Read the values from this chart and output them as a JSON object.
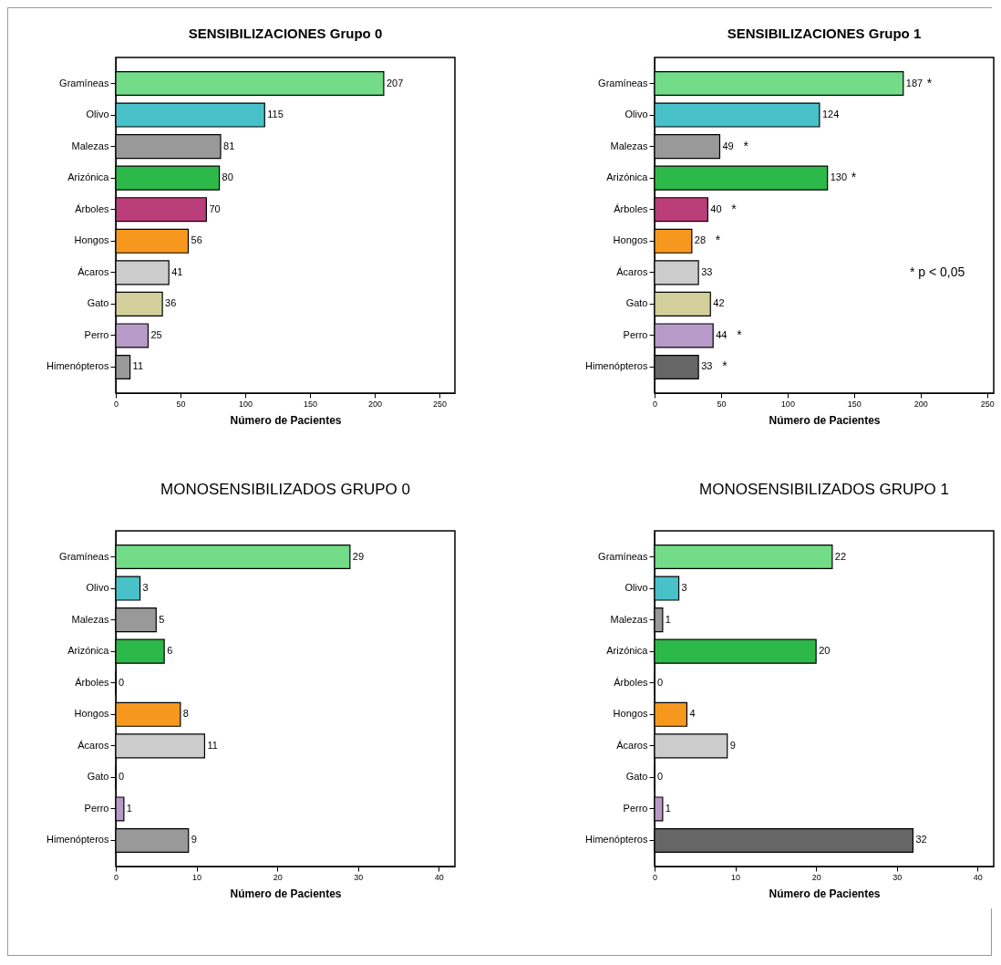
{
  "chart_data": [
    {
      "type": "bar",
      "orientation": "horizontal",
      "title": "SENSIBILIZACIONES Grupo 0",
      "xlabel": "Número de Pacientes",
      "categories": [
        "Gramíneas",
        "Olivo",
        "Malezas",
        "Arizónica",
        "Árboles",
        "Hongos",
        "Ácaros",
        "Gato",
        "Perro",
        "Himenópteros"
      ],
      "values": [
        207,
        115,
        81,
        80,
        70,
        56,
        41,
        36,
        25,
        11
      ],
      "colors": [
        "#72dc88",
        "#48c2c8",
        "#999999",
        "#2db84a",
        "#bb3d7a",
        "#f7981e",
        "#cccccc",
        "#d4d09c",
        "#b89ac8",
        "#999999"
      ],
      "xlim": [
        0,
        262
      ],
      "xticks": [
        0,
        50,
        100,
        150,
        200,
        250
      ],
      "data_labels": true
    },
    {
      "type": "bar",
      "orientation": "horizontal",
      "title": "SENSIBILIZACIONES Grupo 1",
      "xlabel": "Número de Pacientes",
      "categories": [
        "Gramíneas",
        "Olivo",
        "Malezas",
        "Arizónica",
        "Árboles",
        "Hongos",
        "Ácaros",
        "Gato",
        "Perro",
        "Himenópteros"
      ],
      "values": [
        187,
        124,
        49,
        130,
        40,
        28,
        33,
        42,
        44,
        33
      ],
      "colors": [
        "#72dc88",
        "#48c2c8",
        "#999999",
        "#2db84a",
        "#bb3d7a",
        "#f7981e",
        "#cccccc",
        "#d4d09c",
        "#b89ac8",
        "#666666"
      ],
      "xlim": [
        0,
        255
      ],
      "xticks": [
        0,
        50,
        100,
        150,
        200,
        250
      ],
      "data_labels": true,
      "annotations": [
        {
          "text": "*",
          "x": 187,
          "y": "Gramíneas"
        },
        {
          "text": "*",
          "x": 49,
          "y": "Malezas"
        },
        {
          "text": "*",
          "x": 130,
          "y": "Arizónica"
        },
        {
          "text": "*",
          "x": 40,
          "y": "Árboles"
        },
        {
          "text": "*",
          "x": 28,
          "y": "Hongos"
        },
        {
          "text": "*",
          "x": 44,
          "y": "Perro"
        },
        {
          "text": "*",
          "x": 33,
          "y": "Himenópteros"
        },
        "* p < 0,05"
      ]
    },
    {
      "type": "bar",
      "orientation": "horizontal",
      "title": "MONOSENSIBILIZADOS GRUPO 0",
      "xlabel": "Número de Pacientes",
      "categories": [
        "Gramíneas",
        "Olivo",
        "Malezas",
        "Arizónica",
        "Árboles",
        "Hongos",
        "Ácaros",
        "Gato",
        "Perro",
        "Himenópteros"
      ],
      "values": [
        29,
        3,
        5,
        6,
        0,
        8,
        11,
        0,
        1,
        9
      ],
      "colors": [
        "#72dc88",
        "#48c2c8",
        "#999999",
        "#2db84a",
        "#bb3d7a",
        "#f7981e",
        "#cccccc",
        "#d4d09c",
        "#b89ac8",
        "#999999"
      ],
      "xlim": [
        0,
        42
      ],
      "xticks": [
        0,
        10,
        20,
        30,
        40
      ],
      "data_labels": true
    },
    {
      "type": "bar",
      "orientation": "horizontal",
      "title": "MONOSENSIBILIZADOS GRUPO 1",
      "xlabel": "Número de Pacientes",
      "categories": [
        "Gramíneas",
        "Olivo",
        "Malezas",
        "Arizónica",
        "Árboles",
        "Hongos",
        "Ácaros",
        "Gato",
        "Perro",
        "Himenópteros"
      ],
      "values": [
        22,
        3,
        1,
        20,
        0,
        4,
        9,
        0,
        1,
        32
      ],
      "colors": [
        "#72dc88",
        "#48c2c8",
        "#999999",
        "#2db84a",
        "#bb3d7a",
        "#f7981e",
        "#cccccc",
        "#d4d09c",
        "#b89ac8",
        "#666666"
      ],
      "xlim": [
        0,
        42
      ],
      "xticks": [
        0,
        10,
        20,
        30,
        40
      ],
      "data_labels": true
    }
  ]
}
